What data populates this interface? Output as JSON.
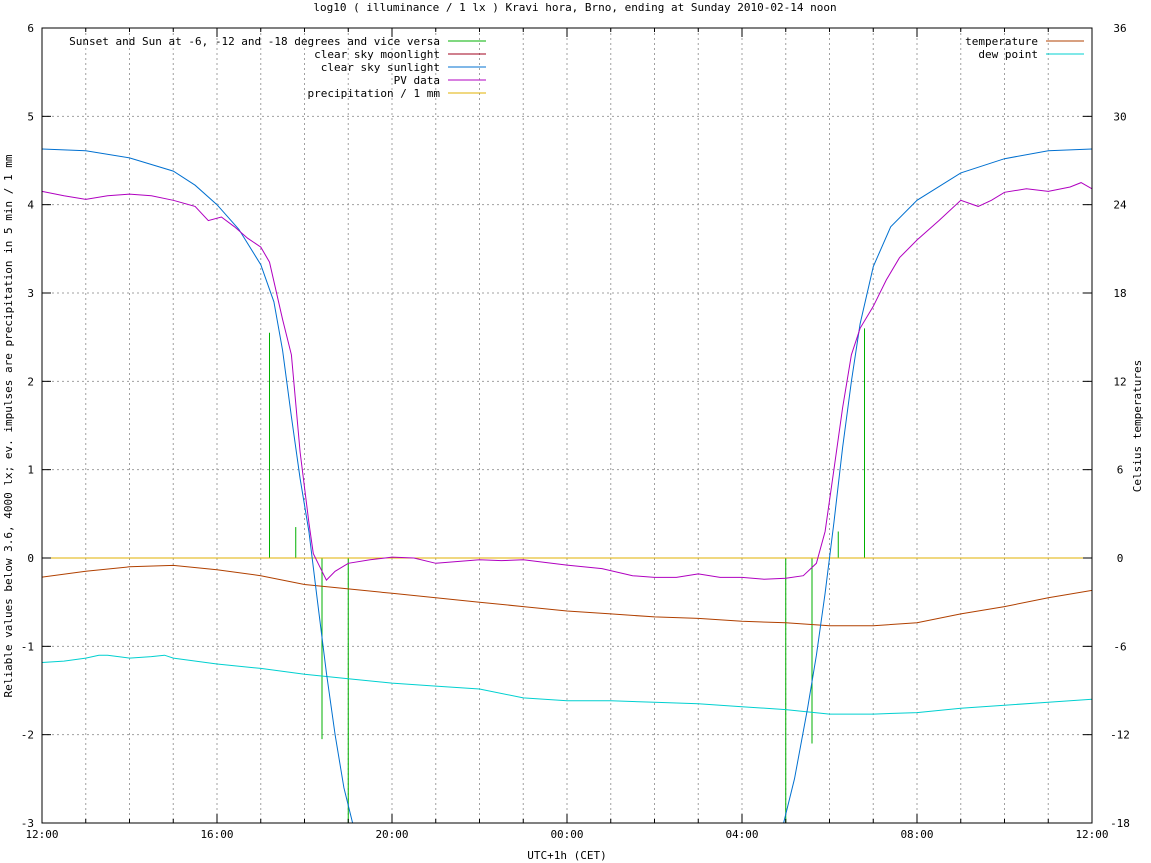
{
  "chart_data": {
    "type": "line",
    "title": "log10 ( illuminance / 1 lx ) Kravi hora, Brno, ending at Sunday 2010-02-14 noon",
    "xlabel": "UTC+1h (CET)",
    "ylabel": "Reliable values below 3.6, 4000 lx; ev. impulses are precipitation in 5 min / 1 mm",
    "y2label": "Celsius temperatures",
    "x_unit": "hours since 12:00",
    "xlim": [
      0,
      24
    ],
    "ylim": [
      -3,
      6
    ],
    "y2lim": [
      -18,
      36
    ],
    "x_ticks": [
      {
        "x": 0,
        "label": "12:00"
      },
      {
        "x": 4,
        "label": "16:00"
      },
      {
        "x": 8,
        "label": "20:00"
      },
      {
        "x": 12,
        "label": "00:00"
      },
      {
        "x": 16,
        "label": "04:00"
      },
      {
        "x": 20,
        "label": "08:00"
      },
      {
        "x": 24,
        "label": "12:00"
      }
    ],
    "y_ticks": [
      "-3",
      "-2",
      "-1",
      "0",
      "1",
      "2",
      "3",
      "4",
      "5",
      "6"
    ],
    "y2_ticks": [
      "-18",
      "-12",
      "-6",
      "0",
      "6",
      "12",
      "18",
      "24",
      "30",
      "36"
    ],
    "grid": true,
    "legend_left": [
      {
        "name": "Sunset and Sun at -6, -12 and -18 degrees and vice versa",
        "color": "#00b000"
      },
      {
        "name": "clear sky moonlight",
        "color": "#a0001c"
      },
      {
        "name": "clear sky sunlight",
        "color": "#0070d0"
      },
      {
        "name": "PV data",
        "color": "#b000c0"
      },
      {
        "name": "precipitation / 1 mm",
        "color": "#e0b000"
      }
    ],
    "legend_right": [
      {
        "name": "temperature",
        "color": "#b04000"
      },
      {
        "name": "dew point",
        "color": "#00d0d0"
      }
    ],
    "sun_event_impulses": [
      {
        "x": 5.2,
        "top": 2.55
      },
      {
        "x": 5.8,
        "top": 0.35
      },
      {
        "x": 6.4,
        "top": -2.05
      },
      {
        "x": 7.0,
        "top": -3.0
      },
      {
        "x": 17.0,
        "top": -3.0
      },
      {
        "x": 17.6,
        "top": -2.1
      },
      {
        "x": 18.2,
        "top": 0.3
      },
      {
        "x": 18.8,
        "top": 2.6
      }
    ],
    "series": [
      {
        "name": "clear sky sunlight",
        "color": "#0070d0",
        "axis": "y",
        "points": [
          [
            0,
            4.63
          ],
          [
            1,
            4.61
          ],
          [
            2,
            4.53
          ],
          [
            3,
            4.38
          ],
          [
            3.5,
            4.22
          ],
          [
            4,
            4.0
          ],
          [
            4.5,
            3.72
          ],
          [
            5,
            3.32
          ],
          [
            5.3,
            2.9
          ],
          [
            5.5,
            2.35
          ],
          [
            5.7,
            1.6
          ],
          [
            5.9,
            0.9
          ],
          [
            6.1,
            0.3
          ],
          [
            6.3,
            -0.5
          ],
          [
            6.5,
            -1.3
          ],
          [
            6.7,
            -2.0
          ],
          [
            6.9,
            -2.6
          ],
          [
            7.1,
            -3.0
          ],
          [
            16.95,
            -3.0
          ],
          [
            17.2,
            -2.5
          ],
          [
            17.5,
            -1.7
          ],
          [
            17.7,
            -1.1
          ],
          [
            17.9,
            -0.4
          ],
          [
            18.1,
            0.4
          ],
          [
            18.3,
            1.25
          ],
          [
            18.5,
            2.0
          ],
          [
            18.7,
            2.65
          ],
          [
            19.0,
            3.3
          ],
          [
            19.4,
            3.75
          ],
          [
            20,
            4.05
          ],
          [
            21,
            4.36
          ],
          [
            22,
            4.52
          ],
          [
            23,
            4.61
          ],
          [
            24,
            4.63
          ]
        ]
      },
      {
        "name": "PV data",
        "color": "#b000c0",
        "axis": "y",
        "points": [
          [
            0,
            4.15
          ],
          [
            0.5,
            4.1
          ],
          [
            1,
            4.06
          ],
          [
            1.5,
            4.1
          ],
          [
            2,
            4.12
          ],
          [
            2.5,
            4.1
          ],
          [
            3,
            4.05
          ],
          [
            3.5,
            3.98
          ],
          [
            3.8,
            3.82
          ],
          [
            4.1,
            3.86
          ],
          [
            4.4,
            3.75
          ],
          [
            4.7,
            3.62
          ],
          [
            5,
            3.52
          ],
          [
            5.2,
            3.35
          ],
          [
            5.5,
            2.7
          ],
          [
            5.7,
            2.3
          ],
          [
            5.9,
            1.2
          ],
          [
            6.1,
            0.4
          ],
          [
            6.2,
            0.05
          ],
          [
            6.35,
            -0.1
          ],
          [
            6.5,
            -0.25
          ],
          [
            6.7,
            -0.15
          ],
          [
            7,
            -0.06
          ],
          [
            7.5,
            -0.02
          ],
          [
            8,
            0.01
          ],
          [
            8.5,
            0.0
          ],
          [
            9,
            -0.06
          ],
          [
            10,
            -0.02
          ],
          [
            10.5,
            -0.03
          ],
          [
            11,
            -0.02
          ],
          [
            12,
            -0.08
          ],
          [
            12.8,
            -0.12
          ],
          [
            13.5,
            -0.2
          ],
          [
            14,
            -0.22
          ],
          [
            14.5,
            -0.22
          ],
          [
            15,
            -0.18
          ],
          [
            15.5,
            -0.22
          ],
          [
            16,
            -0.22
          ],
          [
            16.5,
            -0.24
          ],
          [
            17,
            -0.23
          ],
          [
            17.4,
            -0.2
          ],
          [
            17.7,
            -0.06
          ],
          [
            17.9,
            0.3
          ],
          [
            18.1,
            1.0
          ],
          [
            18.3,
            1.7
          ],
          [
            18.5,
            2.3
          ],
          [
            18.7,
            2.6
          ],
          [
            19,
            2.85
          ],
          [
            19.3,
            3.15
          ],
          [
            19.6,
            3.4
          ],
          [
            20,
            3.6
          ],
          [
            20.5,
            3.82
          ],
          [
            21,
            4.05
          ],
          [
            21.4,
            3.98
          ],
          [
            21.7,
            4.05
          ],
          [
            22,
            4.14
          ],
          [
            22.5,
            4.18
          ],
          [
            23,
            4.15
          ],
          [
            23.5,
            4.2
          ],
          [
            23.75,
            4.25
          ],
          [
            24,
            4.18
          ]
        ]
      },
      {
        "name": "temperature",
        "color": "#b04000",
        "axis": "y2",
        "points": [
          [
            0,
            -1.3
          ],
          [
            1,
            -0.9
          ],
          [
            2,
            -0.6
          ],
          [
            3,
            -0.5
          ],
          [
            4,
            -0.8
          ],
          [
            5,
            -1.2
          ],
          [
            6,
            -1.8
          ],
          [
            7,
            -2.1
          ],
          [
            8,
            -2.4
          ],
          [
            9,
            -2.7
          ],
          [
            10,
            -3.0
          ],
          [
            11,
            -3.3
          ],
          [
            12,
            -3.6
          ],
          [
            13,
            -3.8
          ],
          [
            14,
            -4.0
          ],
          [
            15,
            -4.1
          ],
          [
            16,
            -4.3
          ],
          [
            17,
            -4.4
          ],
          [
            18,
            -4.6
          ],
          [
            19,
            -4.6
          ],
          [
            20,
            -4.4
          ],
          [
            21,
            -3.8
          ],
          [
            22,
            -3.3
          ],
          [
            23,
            -2.7
          ],
          [
            24,
            -2.2
          ]
        ]
      },
      {
        "name": "dew point",
        "color": "#00d0d0",
        "axis": "y2",
        "points": [
          [
            0,
            -7.1
          ],
          [
            0.5,
            -7.0
          ],
          [
            1,
            -6.8
          ],
          [
            1.3,
            -6.6
          ],
          [
            1.5,
            -6.6
          ],
          [
            2,
            -6.8
          ],
          [
            2.5,
            -6.7
          ],
          [
            2.8,
            -6.6
          ],
          [
            3,
            -6.8
          ],
          [
            4,
            -7.2
          ],
          [
            5,
            -7.5
          ],
          [
            6,
            -7.9
          ],
          [
            7,
            -8.2
          ],
          [
            8,
            -8.5
          ],
          [
            9,
            -8.7
          ],
          [
            10,
            -8.9
          ],
          [
            11,
            -9.5
          ],
          [
            12,
            -9.7
          ],
          [
            13,
            -9.7
          ],
          [
            14,
            -9.8
          ],
          [
            15,
            -9.9
          ],
          [
            16,
            -10.1
          ],
          [
            17,
            -10.3
          ],
          [
            18,
            -10.6
          ],
          [
            19,
            -10.6
          ],
          [
            20,
            -10.5
          ],
          [
            21,
            -10.2
          ],
          [
            22,
            -10.0
          ],
          [
            23,
            -9.8
          ],
          [
            24,
            -9.6
          ]
        ]
      },
      {
        "name": "precipitation / 1 mm",
        "color": "#e0b000",
        "axis": "y",
        "points": [
          [
            0,
            0
          ],
          [
            24,
            0
          ]
        ]
      }
    ]
  }
}
